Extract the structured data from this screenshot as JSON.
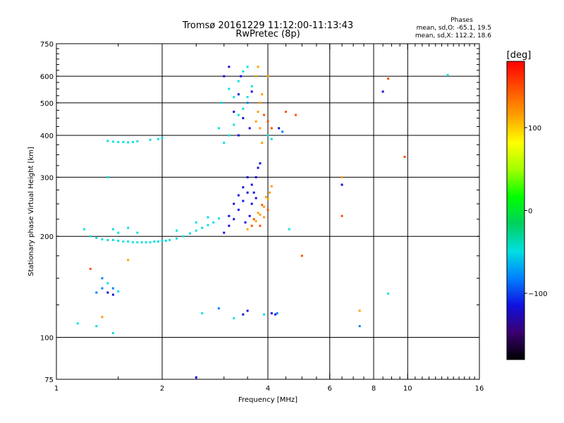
{
  "chart_data": {
    "type": "scatter",
    "title": "Tromsø 20161229 11:12:00-11:13:43",
    "subtitle": "RwPretec (8p)",
    "xlabel": "Frequency [MHz]",
    "ylabel": "Stationary phase Virtual Height [km]",
    "x_scale": "log",
    "y_scale": "log",
    "xlim": [
      1,
      16
    ],
    "ylim": [
      75,
      750
    ],
    "x_ticks": [
      1,
      2,
      4,
      6,
      8,
      10,
      16
    ],
    "x_tick_labels": [
      "1",
      "2",
      "4",
      "6",
      "8",
      "10",
      "16"
    ],
    "y_ticks": [
      75,
      100,
      200,
      300,
      400,
      500,
      600,
      750
    ],
    "y_tick_labels": [
      "75",
      "100",
      "200",
      "300",
      "400",
      "500",
      "600",
      "750"
    ],
    "grid": true,
    "phases": {
      "title": "Phases",
      "line_o": "mean, sd,O: -65.1, 19.5",
      "line_x": "mean, sd,X: 112.2, 18.6"
    },
    "colorbar": {
      "label": "[deg]",
      "range": [
        -180,
        180
      ],
      "ticks": [
        100,
        0,
        -100
      ],
      "tick_labels": [
        "100",
        "0",
        "−100"
      ]
    },
    "series": [
      {
        "points": [
          [
            1.2,
            210,
            -40
          ],
          [
            1.25,
            200,
            -35
          ],
          [
            1.3,
            198,
            -45
          ],
          [
            1.35,
            196,
            -40
          ],
          [
            1.4,
            195,
            -35
          ],
          [
            1.45,
            195,
            -50
          ],
          [
            1.5,
            194,
            -40
          ],
          [
            1.55,
            193,
            -45
          ],
          [
            1.6,
            193,
            -40
          ],
          [
            1.65,
            192,
            -35
          ],
          [
            1.7,
            192,
            -40
          ],
          [
            1.75,
            192,
            -45
          ],
          [
            1.8,
            192,
            -40
          ],
          [
            1.85,
            192,
            -38
          ],
          [
            1.9,
            193,
            -42
          ],
          [
            1.95,
            193,
            -40
          ],
          [
            2.0,
            194,
            -40
          ],
          [
            2.05,
            194,
            -45
          ],
          [
            2.1,
            195,
            -40
          ],
          [
            2.2,
            197,
            -35
          ],
          [
            2.3,
            200,
            -40
          ],
          [
            2.4,
            204,
            -45
          ],
          [
            2.5,
            208,
            -40
          ],
          [
            2.6,
            212,
            -50
          ],
          [
            2.7,
            216,
            -40
          ],
          [
            2.8,
            220,
            -45
          ],
          [
            2.9,
            226,
            -60
          ],
          [
            1.45,
            210,
            -40
          ],
          [
            1.5,
            205,
            -45
          ],
          [
            1.6,
            212,
            -45
          ],
          [
            1.7,
            205,
            -40
          ],
          [
            2.2,
            208,
            -40
          ],
          [
            2.5,
            220,
            -40
          ],
          [
            2.7,
            228,
            -40
          ],
          [
            1.4,
            300,
            -50
          ],
          [
            1.4,
            385,
            -40
          ],
          [
            1.45,
            383,
            -40
          ],
          [
            1.5,
            382,
            -40
          ],
          [
            1.55,
            382,
            -45
          ],
          [
            1.6,
            381,
            -40
          ],
          [
            1.65,
            382,
            -40
          ],
          [
            1.7,
            384,
            -40
          ],
          [
            1.85,
            388,
            -40
          ],
          [
            1.95,
            390,
            -45
          ],
          [
            2.0,
            393,
            -40
          ],
          [
            1.35,
            150,
            -90
          ],
          [
            1.35,
            140,
            -90
          ],
          [
            1.4,
            136,
            -100
          ],
          [
            1.45,
            134,
            -110
          ],
          [
            1.45,
            140,
            -80
          ],
          [
            1.5,
            137,
            -50
          ],
          [
            1.3,
            136,
            -80
          ],
          [
            1.4,
            145,
            -60
          ],
          [
            1.15,
            110,
            -40
          ],
          [
            1.3,
            108,
            -50
          ],
          [
            1.35,
            115,
            120
          ],
          [
            1.45,
            103,
            -40
          ],
          [
            1.25,
            160,
            140
          ],
          [
            1.6,
            170,
            120
          ],
          [
            2.6,
            118,
            -40
          ],
          [
            2.9,
            122,
            -80
          ],
          [
            3.2,
            114,
            -60
          ],
          [
            3.4,
            117,
            -120
          ],
          [
            3.5,
            120,
            -100
          ],
          [
            3.9,
            117,
            -50
          ],
          [
            4.1,
            118,
            -100
          ],
          [
            4.2,
            117,
            -120
          ],
          [
            4.25,
            118,
            -80
          ],
          [
            2.5,
            76,
            -100
          ],
          [
            3.0,
            380,
            -40
          ],
          [
            3.1,
            400,
            -45
          ],
          [
            3.2,
            430,
            -40
          ],
          [
            3.3,
            460,
            -60
          ],
          [
            3.4,
            480,
            -45
          ],
          [
            3.5,
            520,
            -40
          ],
          [
            3.6,
            560,
            -50
          ],
          [
            3.7,
            600,
            -40
          ],
          [
            3.2,
            520,
            -45
          ],
          [
            3.3,
            580,
            -40
          ],
          [
            3.4,
            620,
            -40
          ],
          [
            3.5,
            640,
            -35
          ],
          [
            2.9,
            420,
            -40
          ],
          [
            2.95,
            500,
            -50
          ],
          [
            3.1,
            550,
            -60
          ],
          [
            3.3,
            400,
            -100
          ],
          [
            3.4,
            450,
            -110
          ],
          [
            3.5,
            500,
            -90
          ],
          [
            3.6,
            540,
            -100
          ],
          [
            3.2,
            470,
            -110
          ],
          [
            3.3,
            530,
            -100
          ],
          [
            3.0,
            600,
            -110
          ],
          [
            3.1,
            640,
            -100
          ],
          [
            3.35,
            600,
            -120
          ],
          [
            3.55,
            420,
            -110
          ],
          [
            3.7,
            440,
            120
          ],
          [
            3.75,
            470,
            130
          ],
          [
            3.8,
            500,
            125
          ],
          [
            3.85,
            530,
            120
          ],
          [
            3.7,
            600,
            110
          ],
          [
            3.75,
            640,
            115
          ],
          [
            3.8,
            420,
            120
          ],
          [
            3.85,
            380,
            110
          ],
          [
            3.9,
            460,
            150
          ],
          [
            4.0,
            440,
            155
          ],
          [
            4.1,
            420,
            150
          ],
          [
            4.5,
            470,
            160
          ],
          [
            4.8,
            460,
            160
          ],
          [
            4.0,
            400,
            -40
          ],
          [
            4.1,
            390,
            -60
          ],
          [
            4.3,
            420,
            -100
          ],
          [
            4.4,
            410,
            -90
          ],
          [
            3.0,
            205,
            -100
          ],
          [
            3.1,
            215,
            -110
          ],
          [
            3.2,
            225,
            -100
          ],
          [
            3.3,
            240,
            -110
          ],
          [
            3.4,
            255,
            -100
          ],
          [
            3.5,
            270,
            -110
          ],
          [
            3.6,
            285,
            -100
          ],
          [
            3.7,
            300,
            -110
          ],
          [
            3.75,
            320,
            -100
          ],
          [
            3.8,
            330,
            -110
          ],
          [
            3.1,
            230,
            -110
          ],
          [
            3.2,
            250,
            -105
          ],
          [
            3.3,
            265,
            -110
          ],
          [
            3.4,
            280,
            -100
          ],
          [
            3.5,
            300,
            -110
          ],
          [
            3.6,
            250,
            -105
          ],
          [
            3.55,
            230,
            -110
          ],
          [
            3.65,
            270,
            -100
          ],
          [
            3.7,
            260,
            -110
          ],
          [
            3.45,
            220,
            -105
          ],
          [
            3.5,
            210,
            130
          ],
          [
            3.6,
            215,
            135
          ],
          [
            3.7,
            222,
            130
          ],
          [
            3.8,
            232,
            125
          ],
          [
            3.9,
            245,
            130
          ],
          [
            4.0,
            258,
            125
          ],
          [
            4.05,
            270,
            130
          ],
          [
            4.1,
            282,
            125
          ],
          [
            3.65,
            225,
            135
          ],
          [
            3.75,
            235,
            130
          ],
          [
            3.85,
            248,
            135
          ],
          [
            3.95,
            262,
            130
          ],
          [
            4.0,
            240,
            135
          ],
          [
            3.9,
            228,
            130
          ],
          [
            3.8,
            215,
            135
          ],
          [
            4.0,
            600,
            130
          ],
          [
            6.5,
            300,
            110
          ],
          [
            6.5,
            230,
            140
          ],
          [
            6.5,
            285,
            -100
          ],
          [
            8.5,
            540,
            -120
          ],
          [
            8.8,
            590,
            150
          ],
          [
            9.8,
            345,
            140
          ],
          [
            8.8,
            135,
            -50
          ],
          [
            7.3,
            108,
            -80
          ],
          [
            7.3,
            120,
            110
          ],
          [
            5.0,
            175,
            160
          ],
          [
            4.6,
            210,
            -50
          ],
          [
            13,
            605,
            -60
          ]
        ]
      }
    ],
    "colormap": [
      "#000000",
      "#3a0070",
      "#1010e0",
      "#0080ff",
      "#00e0e0",
      "#00d060",
      "#00ff00",
      "#a0ff00",
      "#ffff00",
      "#ffa000",
      "#ff5000",
      "#ff0000"
    ]
  }
}
